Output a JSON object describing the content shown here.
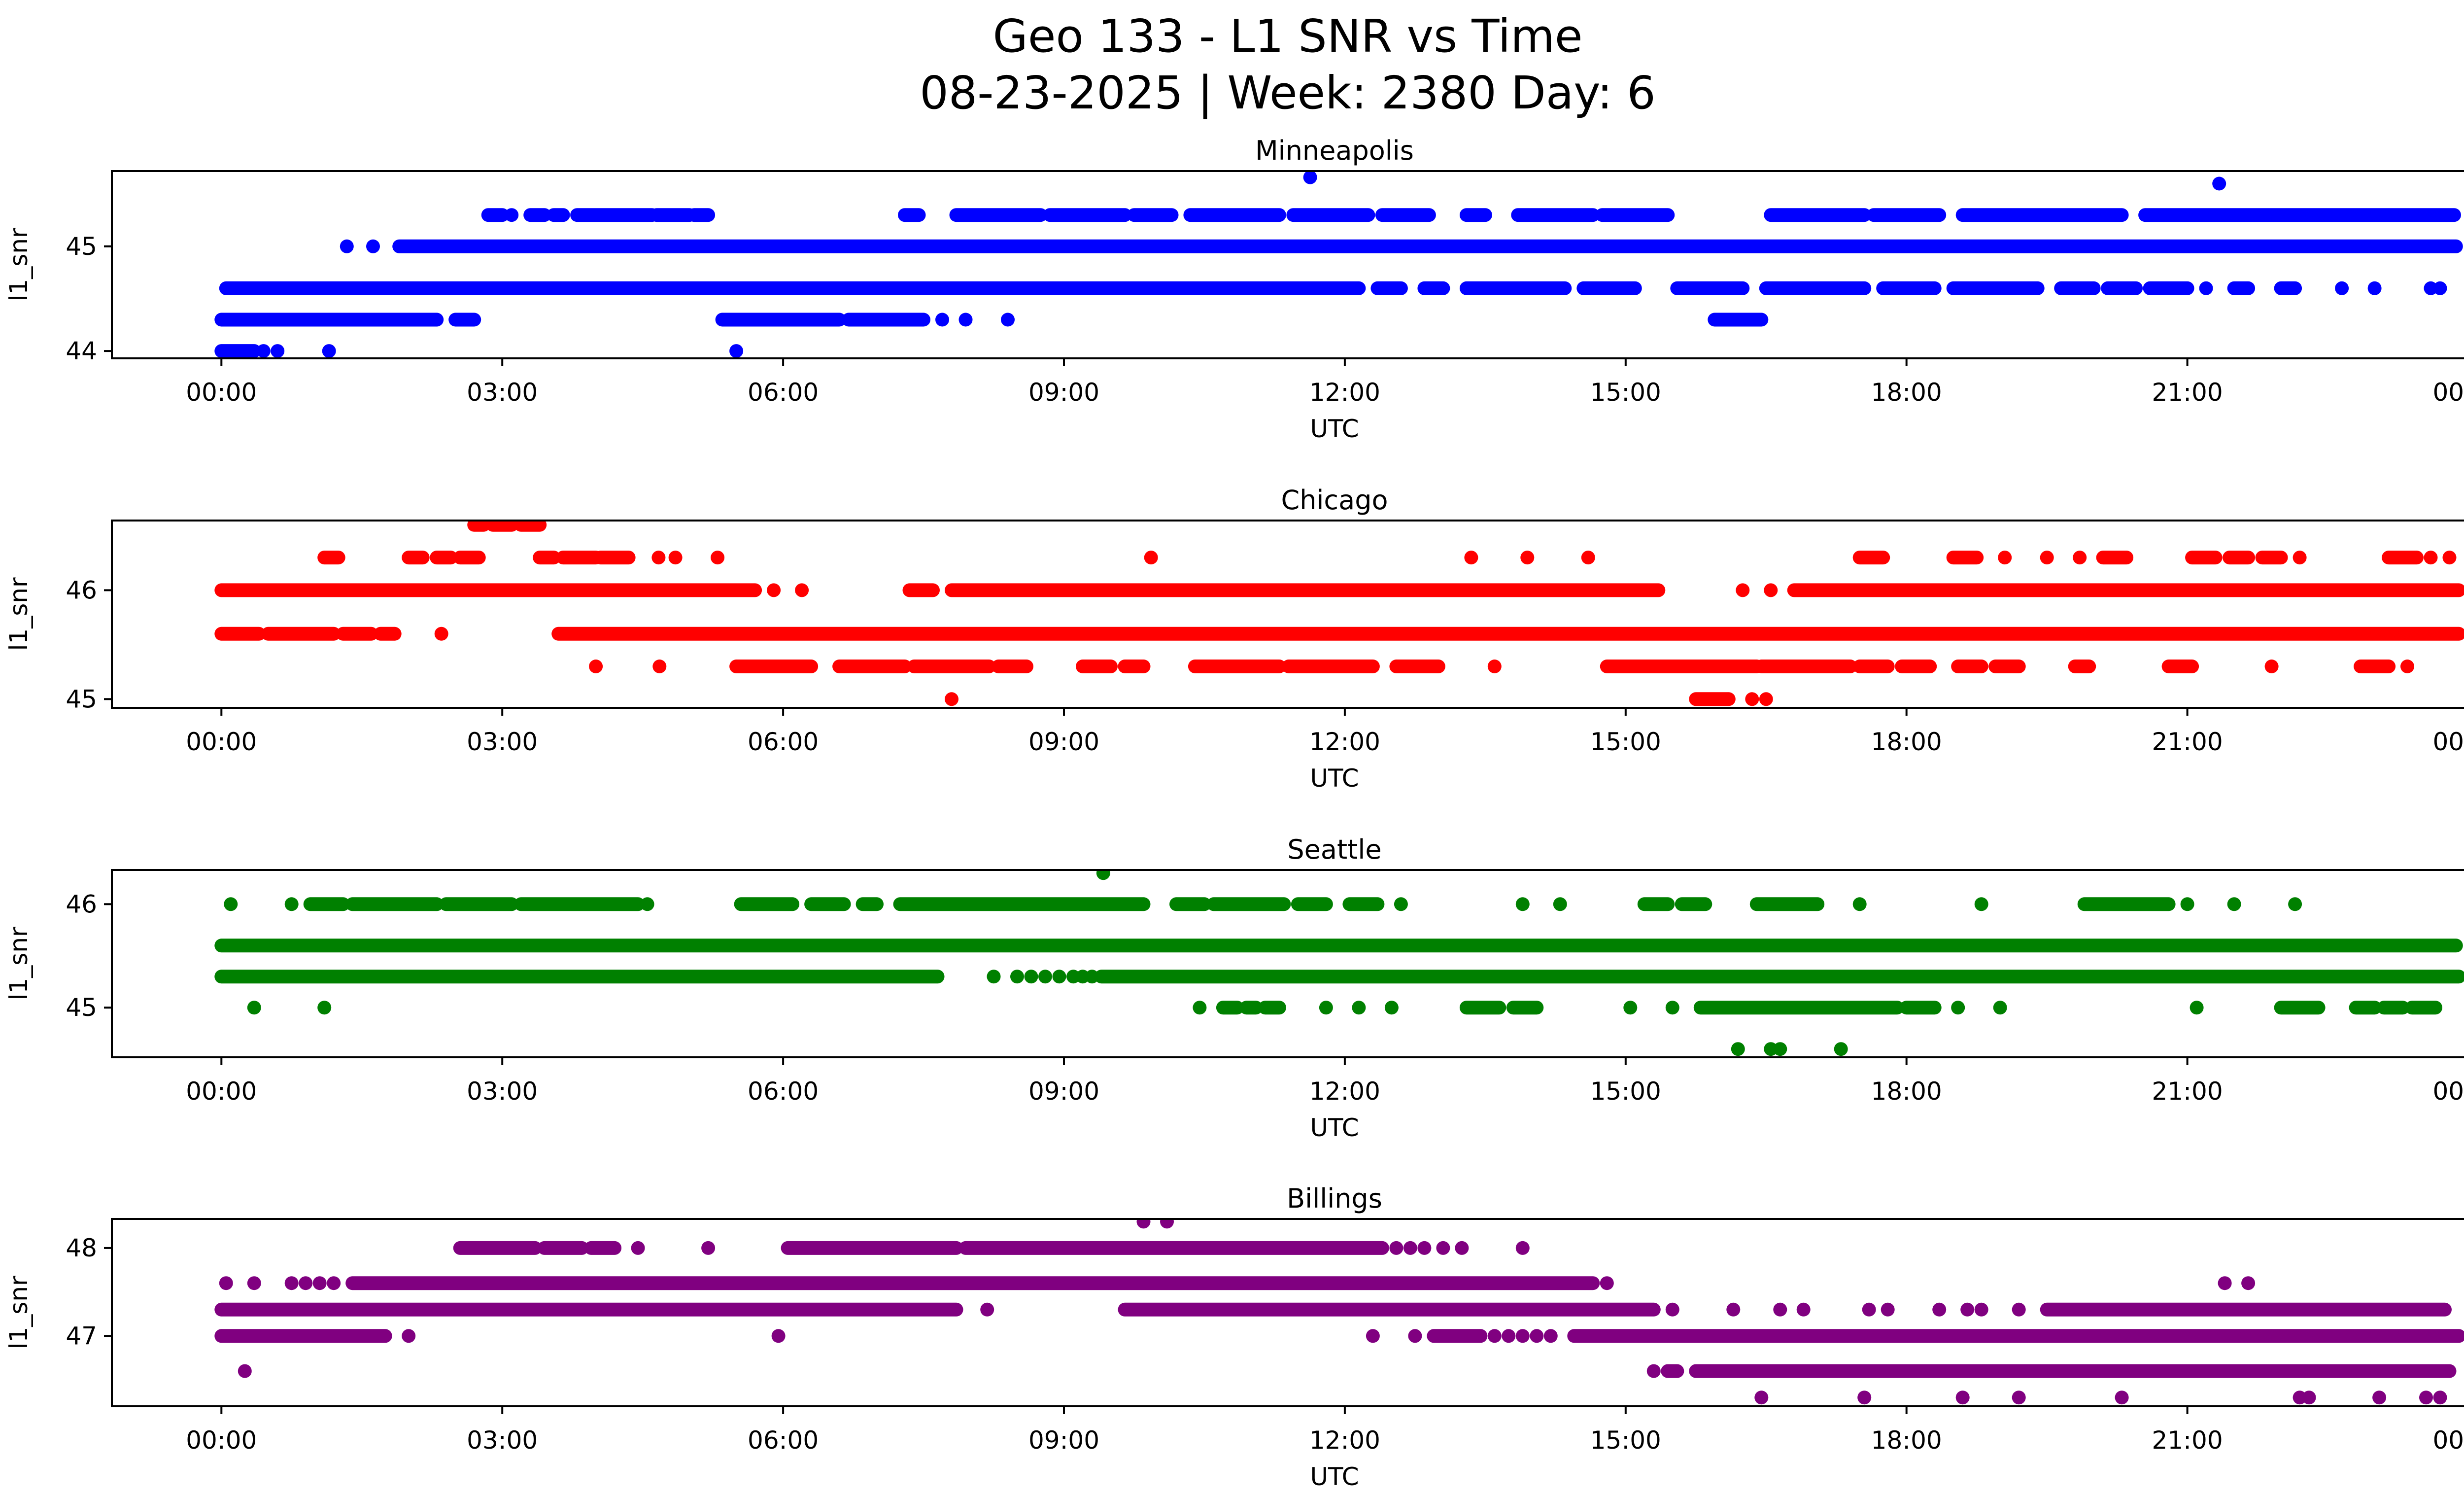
{
  "figure": {
    "suptitle_line1": "Geo 133 - L1 SNR vs Time",
    "suptitle_line2": "08-23-2025 | Week: 2380 Day: 6"
  },
  "chart_data": [
    {
      "type": "scatter",
      "title": "Minneapolis",
      "color": "#0000ff",
      "xlabel": "UTC",
      "ylabel": "l1_snr",
      "xlim": [
        -1.17,
        24.95
      ],
      "ylim": [
        43.93,
        45.72
      ],
      "xticks": [
        0,
        3,
        6,
        9,
        12,
        15,
        18,
        21,
        24
      ],
      "xtick_labels": [
        "00:00",
        "03:00",
        "06:00",
        "09:00",
        "12:00",
        "15:00",
        "18:00",
        "21:00",
        "00:00"
      ],
      "yticks": [
        44,
        45
      ],
      "grid": false,
      "legend": "none",
      "bands": [
        {
          "snr": 45.66,
          "segments": [],
          "points": [
            11.63
          ]
        },
        {
          "snr": 45.6,
          "segments": [],
          "points": [
            21.34
          ]
        },
        {
          "snr": 45.3,
          "segments": [
            [
              2.85,
              3.0
            ],
            [
              3.3,
              3.45
            ],
            [
              3.55,
              3.65
            ],
            [
              3.8,
              4.6
            ],
            [
              4.65,
              5.0
            ],
            [
              5.05,
              5.2
            ],
            [
              7.3,
              7.45
            ],
            [
              7.85,
              8.75
            ],
            [
              8.85,
              9.65
            ],
            [
              9.75,
              10.15
            ],
            [
              10.35,
              11.3
            ],
            [
              11.45,
              12.25
            ],
            [
              12.4,
              12.9
            ],
            [
              13.3,
              13.5
            ],
            [
              13.85,
              14.65
            ],
            [
              14.75,
              15.45
            ],
            [
              16.55,
              17.55
            ],
            [
              17.65,
              18.35
            ],
            [
              18.6,
              20.3
            ],
            [
              20.55,
              23.85
            ]
          ],
          "points": [
            3.1
          ]
        },
        {
          "snr": 45.0,
          "segments": [
            [
              1.9,
              23.87
            ]
          ],
          "points": [
            1.34,
            1.62
          ]
        },
        {
          "snr": 44.6,
          "segments": [
            [
              0.05,
              12.15
            ],
            [
              12.35,
              12.6
            ],
            [
              12.85,
              13.05
            ],
            [
              13.3,
              14.35
            ],
            [
              14.55,
              15.1
            ],
            [
              15.55,
              16.25
            ],
            [
              16.5,
              17.55
            ],
            [
              17.75,
              18.3
            ],
            [
              18.5,
              19.4
            ],
            [
              19.65,
              20.0
            ],
            [
              20.15,
              20.45
            ],
            [
              20.6,
              21.0
            ],
            [
              21.5,
              21.65
            ],
            [
              22.0,
              22.15
            ]
          ],
          "points": [
            21.2,
            22.65,
            23.0,
            23.6,
            23.7
          ]
        },
        {
          "snr": 44.3,
          "segments": [
            [
              0.0,
              2.3
            ],
            [
              2.5,
              2.7
            ],
            [
              5.35,
              6.6
            ],
            [
              6.7,
              7.5
            ],
            [
              15.95,
              16.45
            ]
          ],
          "points": [
            7.7,
            7.95,
            8.4
          ]
        },
        {
          "snr": 44.0,
          "segments": [
            [
              0.0,
              0.35
            ]
          ],
          "points": [
            0.45,
            0.6,
            1.15,
            5.5
          ]
        }
      ]
    },
    {
      "type": "scatter",
      "title": "Chicago",
      "color": "#ff0000",
      "xlabel": "UTC",
      "ylabel": "l1_snr",
      "xlim": [
        -1.17,
        24.95
      ],
      "ylim": [
        44.92,
        46.64
      ],
      "xticks": [
        0,
        3,
        6,
        9,
        12,
        15,
        18,
        21,
        24
      ],
      "xtick_labels": [
        "00:00",
        "03:00",
        "06:00",
        "09:00",
        "12:00",
        "15:00",
        "18:00",
        "21:00",
        "00:00"
      ],
      "yticks": [
        45,
        46
      ],
      "grid": false,
      "legend": "none",
      "bands": [
        {
          "snr": 46.6,
          "segments": [
            [
              2.7,
              2.8
            ],
            [
              2.9,
              3.1
            ],
            [
              3.2,
              3.4
            ]
          ],
          "points": []
        },
        {
          "snr": 46.3,
          "segments": [
            [
              1.1,
              1.25
            ],
            [
              2.0,
              2.15
            ],
            [
              2.3,
              2.45
            ],
            [
              2.55,
              2.75
            ],
            [
              3.4,
              3.55
            ],
            [
              3.65,
              4.0
            ],
            [
              4.05,
              4.35
            ],
            [
              17.5,
              17.75
            ],
            [
              18.5,
              18.75
            ],
            [
              20.1,
              20.35
            ],
            [
              21.05,
              21.3
            ],
            [
              21.45,
              21.65
            ],
            [
              21.8,
              22.0
            ],
            [
              23.15,
              23.45
            ]
          ],
          "points": [
            4.67,
            4.85,
            5.3,
            9.93,
            13.35,
            13.95,
            14.6,
            19.05,
            19.5,
            19.85,
            22.2,
            23.6,
            23.8
          ]
        },
        {
          "snr": 46.0,
          "segments": [
            [
              0.0,
              5.7
            ],
            [
              7.35,
              7.6
            ],
            [
              7.8,
              15.35
            ],
            [
              16.8,
              23.9
            ]
          ],
          "points": [
            5.9,
            6.2,
            16.25,
            16.55
          ]
        },
        {
          "snr": 45.6,
          "segments": [
            [
              0.0,
              0.4
            ],
            [
              0.5,
              1.2
            ],
            [
              1.3,
              1.6
            ],
            [
              1.7,
              1.85
            ],
            [
              3.6,
              23.9
            ]
          ],
          "points": [
            2.35
          ]
        },
        {
          "snr": 45.3,
          "segments": [
            [
              5.5,
              6.3
            ],
            [
              6.6,
              7.3
            ],
            [
              7.4,
              8.2
            ],
            [
              8.3,
              8.6
            ],
            [
              9.2,
              9.5
            ],
            [
              9.65,
              9.85
            ],
            [
              10.4,
              11.3
            ],
            [
              11.4,
              12.3
            ],
            [
              12.55,
              13.0
            ],
            [
              14.8,
              16.4
            ],
            [
              16.45,
              17.4
            ],
            [
              17.5,
              17.8
            ],
            [
              17.95,
              18.25
            ],
            [
              18.55,
              18.8
            ],
            [
              18.95,
              19.2
            ],
            [
              19.8,
              19.95
            ],
            [
              20.8,
              21.05
            ],
            [
              22.85,
              23.15
            ]
          ],
          "points": [
            4.0,
            4.68,
            13.6,
            21.9,
            23.35
          ]
        },
        {
          "snr": 45.0,
          "segments": [
            [
              15.75,
              16.1
            ]
          ],
          "points": [
            7.8,
            16.35,
            16.5
          ]
        }
      ]
    },
    {
      "type": "scatter",
      "title": "Seattle",
      "color": "#008000",
      "xlabel": "UTC",
      "ylabel": "l1_snr",
      "xlim": [
        -1.17,
        24.95
      ],
      "ylim": [
        44.52,
        46.33
      ],
      "xticks": [
        0,
        3,
        6,
        9,
        12,
        15,
        18,
        21,
        24
      ],
      "xtick_labels": [
        "00:00",
        "03:00",
        "06:00",
        "09:00",
        "12:00",
        "15:00",
        "18:00",
        "21:00",
        "00:00"
      ],
      "yticks": [
        45,
        46
      ],
      "grid": false,
      "legend": "none",
      "bands": [
        {
          "snr": 46.3,
          "segments": [],
          "points": [
            9.42
          ]
        },
        {
          "snr": 46.0,
          "segments": [
            [
              0.95,
              1.3
            ],
            [
              1.4,
              2.3
            ],
            [
              2.4,
              3.1
            ],
            [
              3.2,
              4.45
            ],
            [
              5.55,
              6.1
            ],
            [
              6.3,
              6.65
            ],
            [
              6.85,
              7.0
            ],
            [
              7.25,
              9.85
            ],
            [
              10.2,
              10.5
            ],
            [
              10.6,
              11.35
            ],
            [
              11.5,
              11.8
            ],
            [
              12.05,
              12.35
            ],
            [
              15.2,
              15.45
            ],
            [
              15.6,
              15.85
            ],
            [
              16.4,
              17.05
            ],
            [
              19.9,
              20.8
            ]
          ],
          "points": [
            0.1,
            0.75,
            4.55,
            12.6,
            13.9,
            14.3,
            17.5,
            18.8,
            21.0,
            21.5,
            22.15
          ]
        },
        {
          "snr": 45.6,
          "segments": [
            [
              0.0,
              23.87
            ]
          ],
          "points": []
        },
        {
          "snr": 45.3,
          "segments": [
            [
              0.0,
              7.65
            ],
            [
              9.4,
              23.9
            ]
          ],
          "points": [
            8.25,
            8.5,
            8.65,
            8.8,
            8.95,
            9.1,
            9.2,
            9.3
          ]
        },
        {
          "snr": 45.0,
          "segments": [
            [
              10.7,
              10.85
            ],
            [
              10.95,
              11.05
            ],
            [
              11.15,
              11.3
            ],
            [
              13.3,
              13.65
            ],
            [
              13.8,
              14.05
            ],
            [
              15.8,
              17.9
            ],
            [
              18.0,
              18.3
            ],
            [
              22.0,
              22.4
            ],
            [
              22.8,
              23.0
            ],
            [
              23.1,
              23.3
            ],
            [
              23.4,
              23.65
            ]
          ],
          "points": [
            0.35,
            1.1,
            10.45,
            11.8,
            12.15,
            12.5,
            15.05,
            15.5,
            18.55,
            19.0,
            21.1
          ]
        },
        {
          "snr": 44.6,
          "segments": [],
          "points": [
            16.2,
            16.55,
            16.65,
            17.3
          ]
        }
      ]
    },
    {
      "type": "scatter",
      "title": "Billings",
      "color": "#800080",
      "xlabel": "UTC",
      "ylabel": "l1_snr",
      "xlim": [
        -1.17,
        24.95
      ],
      "ylim": [
        46.2,
        48.33
      ],
      "xticks": [
        0,
        3,
        6,
        9,
        12,
        15,
        18,
        21,
        24
      ],
      "xtick_labels": [
        "00:00",
        "03:00",
        "06:00",
        "09:00",
        "12:00",
        "15:00",
        "18:00",
        "21:00",
        "00:00"
      ],
      "yticks": [
        47,
        48
      ],
      "grid": false,
      "legend": "none",
      "bands": [
        {
          "snr": 48.3,
          "segments": [],
          "points": [
            9.85,
            10.1
          ]
        },
        {
          "snr": 48.0,
          "segments": [
            [
              2.55,
              3.35
            ],
            [
              3.45,
              3.85
            ],
            [
              3.95,
              4.2
            ],
            [
              6.05,
              7.85
            ],
            [
              7.95,
              12.4
            ]
          ],
          "points": [
            4.45,
            5.2,
            12.55,
            12.7,
            12.85,
            13.05,
            13.25,
            13.9
          ]
        },
        {
          "snr": 47.6,
          "segments": [
            [
              1.4,
              14.65
            ]
          ],
          "points": [
            0.05,
            0.35,
            0.75,
            0.9,
            1.05,
            1.2,
            14.8,
            21.4,
            21.65
          ]
        },
        {
          "snr": 47.3,
          "segments": [
            [
              0.0,
              7.85
            ],
            [
              9.65,
              15.3
            ],
            [
              19.5,
              23.75
            ]
          ],
          "points": [
            8.18,
            15.5,
            16.15,
            16.65,
            16.9,
            17.6,
            17.8,
            18.35,
            18.65,
            18.8,
            19.2
          ]
        },
        {
          "snr": 47.0,
          "segments": [
            [
              0.0,
              1.75
            ],
            [
              12.95,
              13.45
            ],
            [
              14.45,
              23.9
            ]
          ],
          "points": [
            2.0,
            5.95,
            12.3,
            12.75,
            13.6,
            13.75,
            13.9,
            14.05,
            14.2
          ]
        },
        {
          "snr": 46.6,
          "segments": [
            [
              15.45,
              15.55
            ],
            [
              15.75,
              23.8
            ]
          ],
          "points": [
            0.25,
            15.3
          ]
        },
        {
          "snr": 46.3,
          "segments": [],
          "points": [
            16.45,
            17.55,
            18.6,
            19.2,
            20.3,
            22.2,
            22.3,
            23.05,
            23.55,
            23.7
          ]
        }
      ]
    }
  ]
}
